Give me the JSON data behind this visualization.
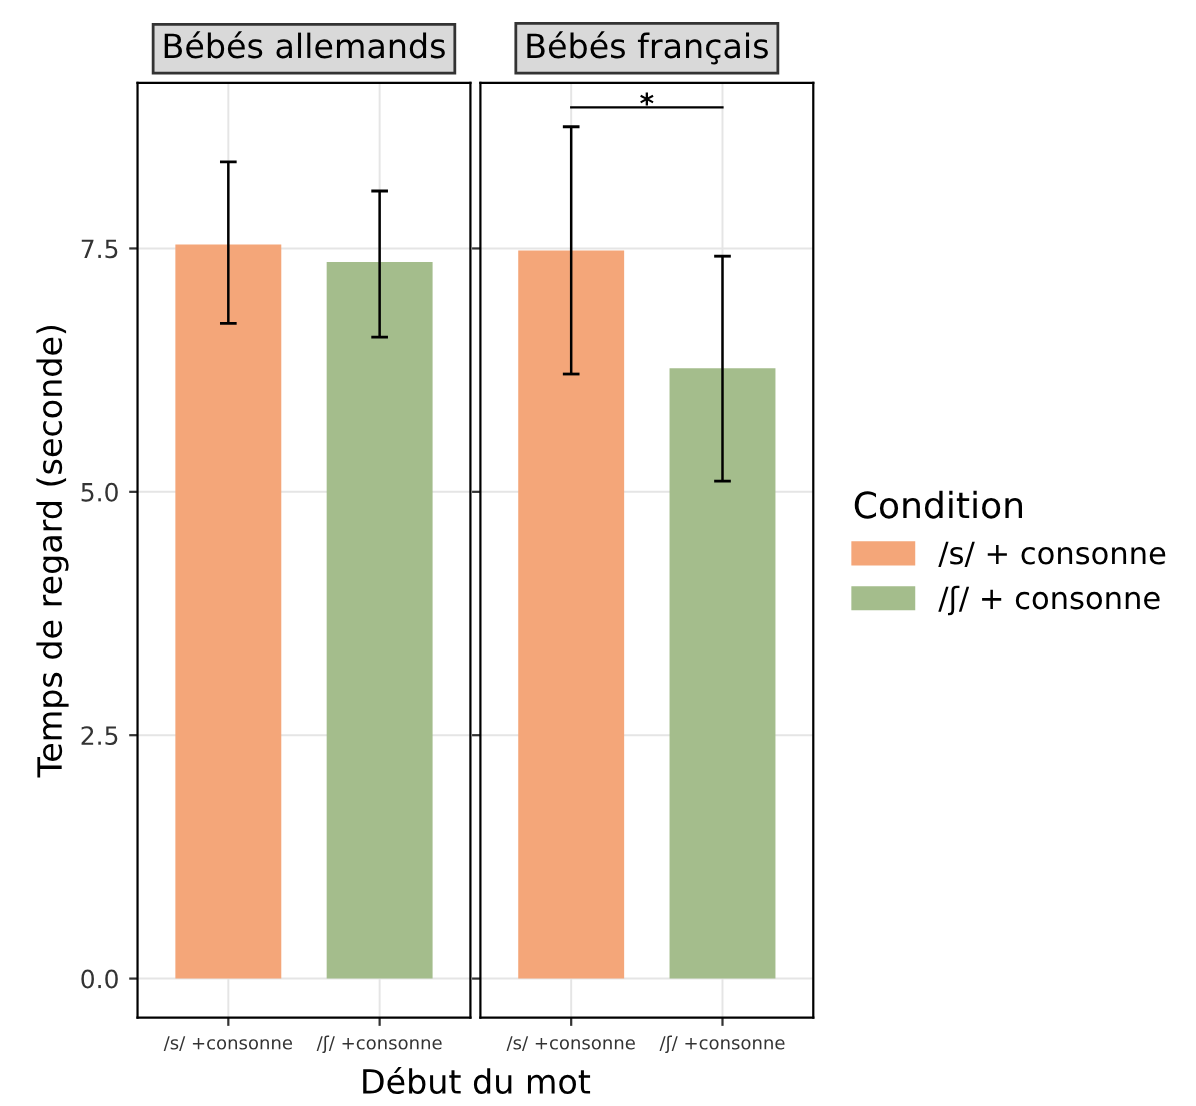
{
  "chart_data": [
    {
      "type": "bar",
      "title": "Bébés allemands",
      "categories": [
        "/s/ +consonne",
        "/ʃ/ +consonne"
      ],
      "ylabel": "Temps de regard (seconde)",
      "xlabel": "Début du mot",
      "ylim": [
        -0.4,
        9.2
      ],
      "yticks": [
        {
          "value": 0,
          "label": "0.0"
        },
        2.5,
        {
          "value": 5,
          "label": "5.0"
        },
        7.5
      ],
      "grid": true,
      "legend": "right",
      "legend_title": "Condition",
      "series": [
        {
          "name": "/s/ + consonne",
          "color": "#f4a679",
          "values": [
            7.54,
            null
          ],
          "errors": [
            [
              6.73,
              8.39
            ],
            null
          ]
        },
        {
          "name": "/ʃ/ + consonne",
          "color": "#a4bd8c",
          "values": [
            null,
            7.36
          ],
          "errors": [
            null,
            [
              6.59,
              8.09
            ]
          ]
        }
      ]
    },
    {
      "type": "bar",
      "title": "Bébés français",
      "categories": [
        "/s/ +consonne",
        "/ʃ/ +consonne"
      ],
      "ylim": [
        -0.4,
        9.2
      ],
      "yticks": [
        0,
        2.5,
        5,
        7.5
      ],
      "grid": true,
      "tick_labels": "x",
      "annotations": [
        "*"
      ],
      "series": [
        {
          "color": "#f4a679",
          "values": [
            7.48,
            null
          ],
          "errors": [
            [
              6.21,
              8.75
            ],
            null
          ]
        },
        {
          "color": "#a4bd8c",
          "values": [
            null,
            6.27
          ],
          "errors": [
            null,
            [
              5.11,
              7.42
            ]
          ]
        }
      ]
    }
  ]
}
